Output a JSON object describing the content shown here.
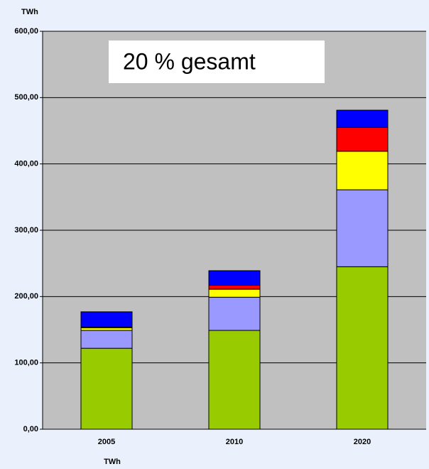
{
  "chart_data": {
    "type": "stacked_bar",
    "ylabel": "TWh",
    "xlabel": "TWh",
    "annotation": "20 % gesamt",
    "categories": [
      "2005",
      "2010",
      "2020"
    ],
    "series": [
      {
        "color": "#99cc00",
        "values": [
          122,
          149,
          245
        ]
      },
      {
        "color": "#9999ff",
        "values": [
          27,
          50,
          116
        ]
      },
      {
        "color": "#ffff00",
        "values": [
          4,
          12,
          58
        ]
      },
      {
        "color": "#ff0000",
        "values": [
          1,
          6,
          36
        ]
      },
      {
        "color": "#0000ff",
        "values": [
          23,
          22,
          26
        ]
      }
    ],
    "ylim": [
      0,
      600
    ],
    "yticks": [
      {
        "value": 0,
        "label": "0,00"
      },
      {
        "value": 100,
        "label": "100,00"
      },
      {
        "value": 200,
        "label": "200,00"
      },
      {
        "value": 300,
        "label": "300,00"
      },
      {
        "value": 400,
        "label": "400,00"
      },
      {
        "value": 500,
        "label": "500,00"
      },
      {
        "value": 600,
        "label": "600,00"
      }
    ],
    "grid": true
  }
}
